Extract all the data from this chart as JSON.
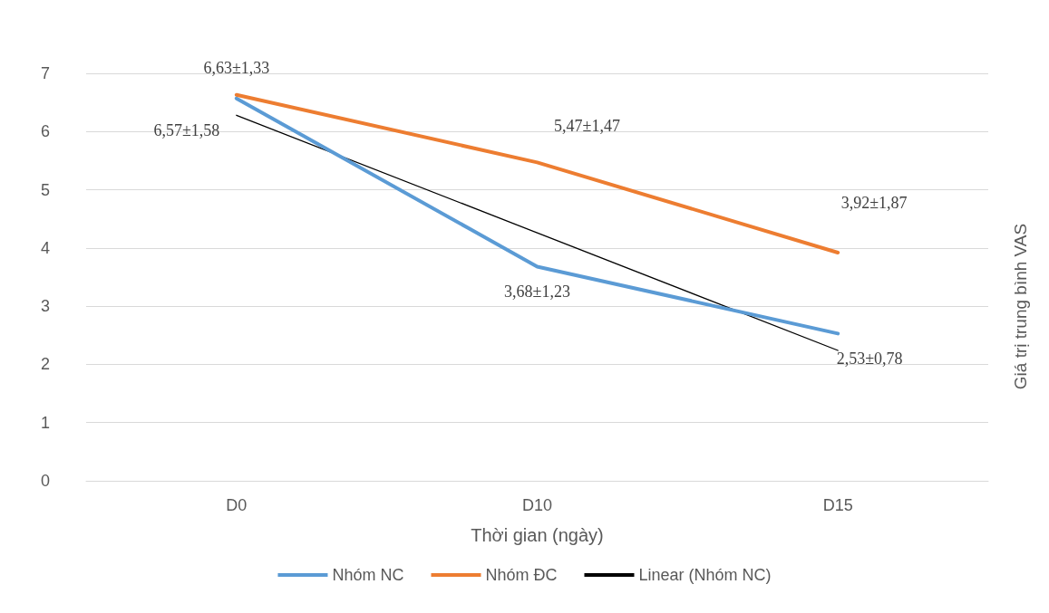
{
  "chart_data": {
    "type": "line",
    "xlabel": "Thời gian (ngày)",
    "ylabel": "Giá trị trung bình VAS",
    "categories": [
      "D0",
      "D10",
      "D15"
    ],
    "series": [
      {
        "name": "Nhóm NC",
        "color": "#5b9bd5",
        "values": [
          6.57,
          3.68,
          2.53
        ],
        "value_labels": [
          "6,57±1,58",
          "3,68±1,23",
          "2,53±0,78"
        ]
      },
      {
        "name": "Nhóm ĐC",
        "color": "#ed7d31",
        "values": [
          6.63,
          5.47,
          3.92
        ],
        "value_labels": [
          "6,63±1,33",
          "5,47±1,47",
          "3,92±1,87"
        ]
      },
      {
        "name": "Linear (Nhóm NC)",
        "color": "#000000",
        "values": [
          6.28,
          4.26,
          2.24
        ]
      }
    ],
    "ylim": [
      0,
      7
    ],
    "yticks": [
      0,
      1,
      2,
      3,
      4,
      5,
      6,
      7
    ],
    "grid": "y",
    "legend": "bottom",
    "marker": "none",
    "line_style": "solid"
  }
}
